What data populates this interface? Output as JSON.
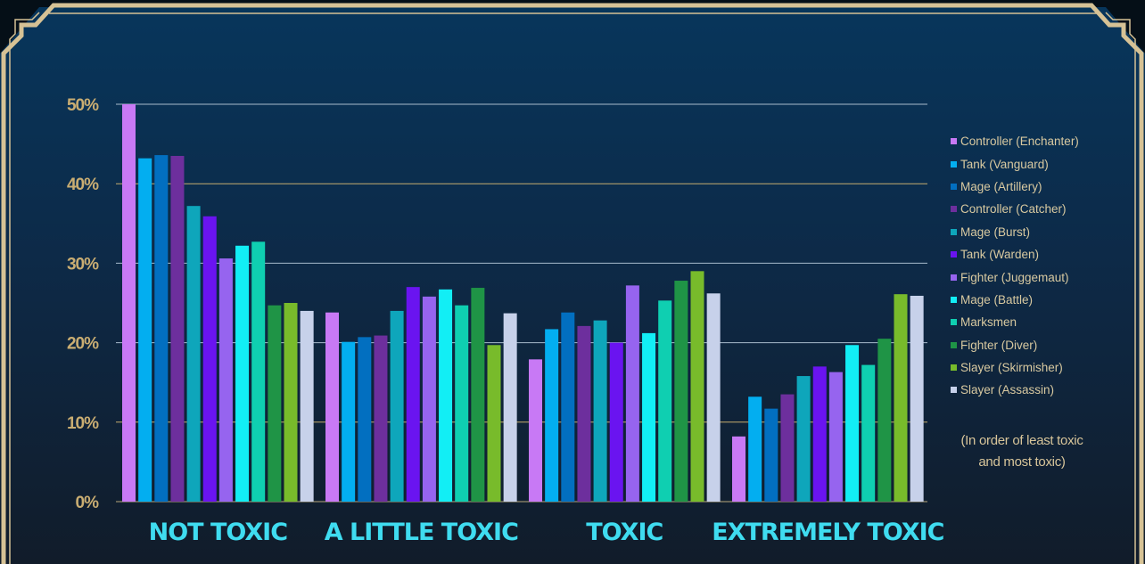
{
  "chart_data": {
    "type": "bar",
    "categories": [
      "NOT TOXIC",
      "A LITTLE TOXIC",
      "TOXIC",
      "EXTREMELY TOXIC"
    ],
    "ylim": [
      0,
      50
    ],
    "yticks": [
      "0%",
      "10%",
      "20%",
      "30%",
      "40%",
      "50%"
    ],
    "grid": true,
    "legend_position": "right",
    "series": [
      {
        "name": "Controller (Enchanter)",
        "color": "#c879f5",
        "values": [
          50.0,
          23.8,
          17.9,
          8.2
        ]
      },
      {
        "name": "Tank (Vanguard)",
        "color": "#03aef0",
        "values": [
          43.2,
          20.1,
          21.7,
          13.2
        ]
      },
      {
        "name": "Mage (Artillery)",
        "color": "#026fc0",
        "values": [
          43.6,
          20.7,
          23.8,
          11.7
        ]
      },
      {
        "name": "Controller (Catcher)",
        "color": "#6d2f9d",
        "values": [
          43.5,
          20.9,
          22.1,
          13.5
        ]
      },
      {
        "name": "Mage (Burst)",
        "color": "#0ea6bb",
        "values": [
          37.2,
          24.0,
          22.8,
          15.8
        ]
      },
      {
        "name": "Tank (Warden)",
        "color": "#6a14f0",
        "values": [
          35.9,
          27.0,
          20.0,
          17.0
        ]
      },
      {
        "name": "Fighter (Juggemaut)",
        "color": "#9664ef",
        "values": [
          30.6,
          25.8,
          27.2,
          16.3
        ]
      },
      {
        "name": "Mage (Battle)",
        "color": "#12eef5",
        "values": [
          32.2,
          26.7,
          21.2,
          19.7
        ]
      },
      {
        "name": "Marksmen",
        "color": "#0fcfb1",
        "values": [
          32.7,
          24.7,
          25.3,
          17.2
        ]
      },
      {
        "name": "Fighter (Diver)",
        "color": "#1f9446",
        "values": [
          24.7,
          26.9,
          27.8,
          20.5
        ]
      },
      {
        "name": "Slayer (Skirmisher)",
        "color": "#78bb2b",
        "values": [
          25.0,
          19.7,
          29.0,
          26.1
        ]
      },
      {
        "name": "Slayer (Assassin)",
        "color": "#c7d1ea",
        "values": [
          24.0,
          23.7,
          26.2,
          25.9
        ]
      }
    ],
    "note": "(In order of least toxic and most toxic)"
  },
  "note_lines": [
    "(In order of least toxic",
    "and most toxic)"
  ]
}
